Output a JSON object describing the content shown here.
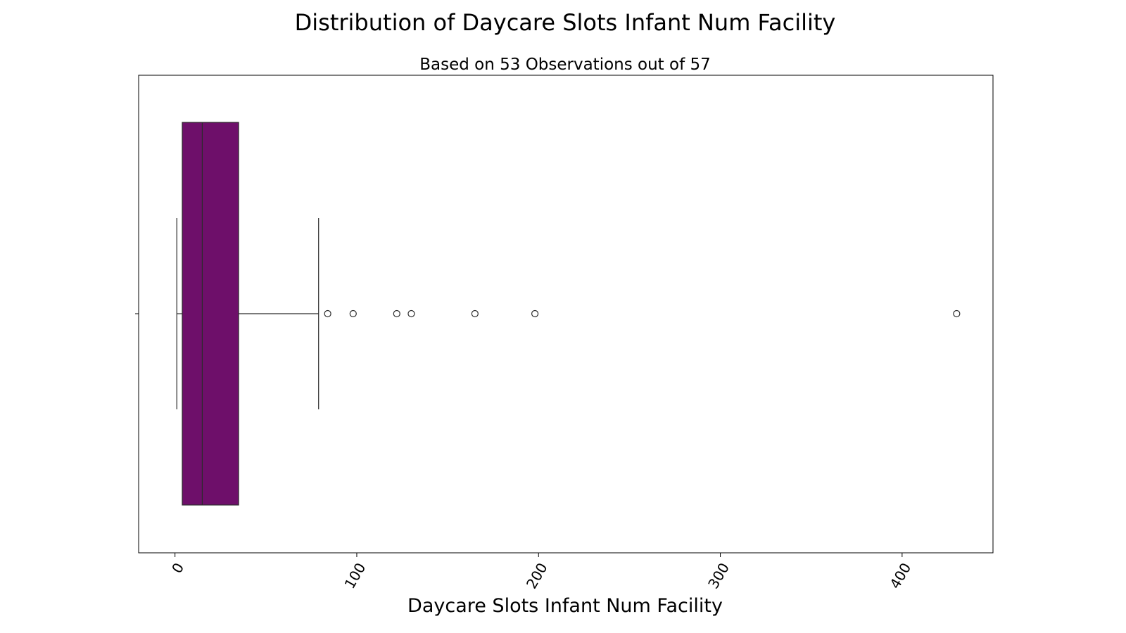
{
  "chart_data": {
    "type": "box",
    "title": "Distribution of Daycare Slots Infant Num Facility",
    "subtitle": "Based on 53 Observations out of 57",
    "xlabel": "Daycare Slots Infant Num Facility",
    "ylabel": "",
    "xlim": [
      -20,
      450
    ],
    "xticks": [
      0,
      100,
      200,
      300,
      400
    ],
    "xtick_labels": [
      "0",
      "100",
      "200",
      "300",
      "400"
    ],
    "box": {
      "whisker_low": 1,
      "q1": 4,
      "median": 15,
      "q3": 35,
      "whisker_high": 79
    },
    "outliers": [
      84,
      98,
      122,
      130,
      165,
      198,
      430
    ],
    "box_color": "#6e0f6a",
    "edge_color": "#2b2b2b",
    "grid": false
  }
}
